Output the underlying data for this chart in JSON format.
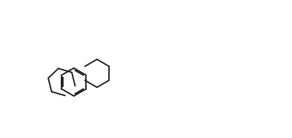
{
  "background_color": "#ffffff",
  "line_color": "#1a1a1a",
  "line_width": 1.4,
  "figsize": [
    4.18,
    1.98
  ],
  "dpi": 100,
  "font_size": 8.5,
  "font_size_small": 7.5
}
